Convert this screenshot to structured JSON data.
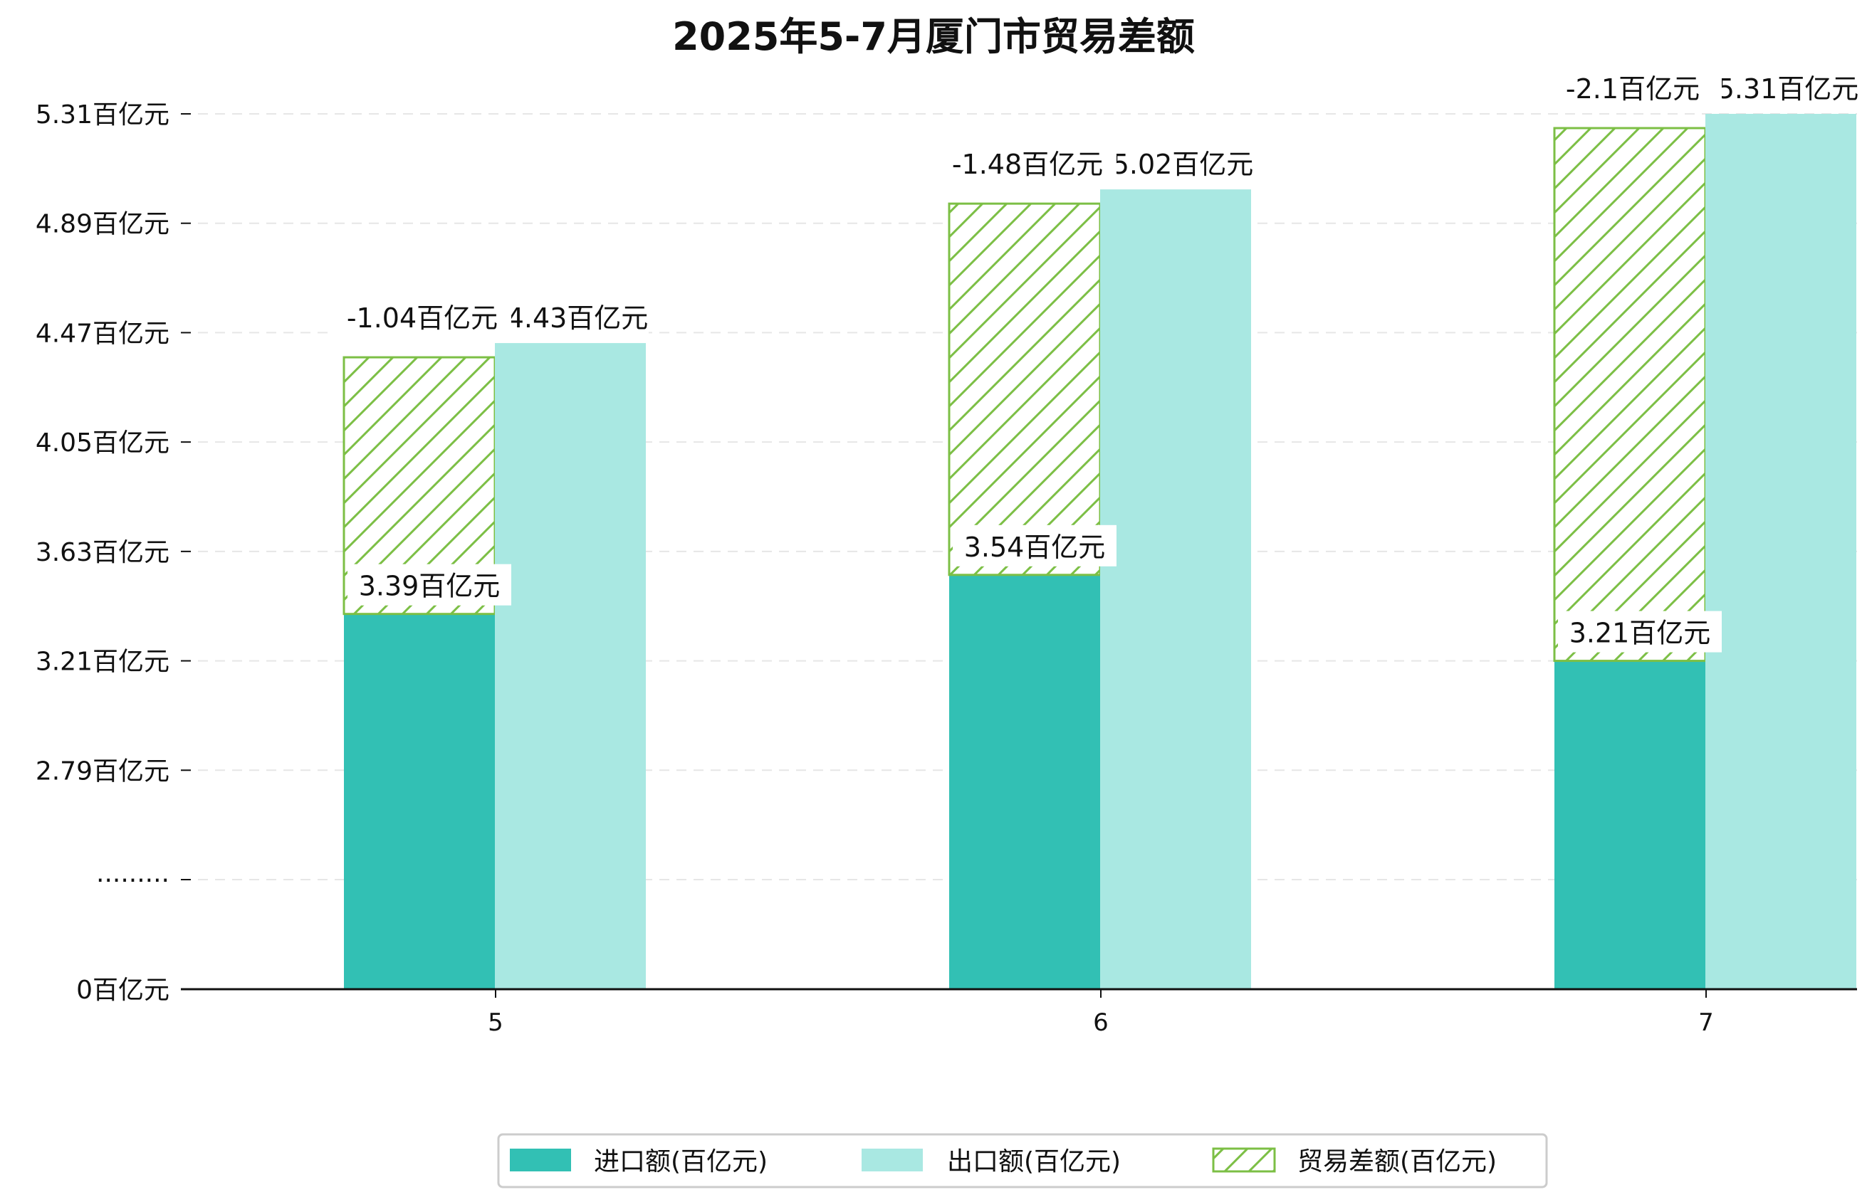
{
  "chart_data": {
    "type": "bar",
    "title": "2025年5-7月厦门市贸易差额",
    "categories": [
      "5",
      "6",
      "7"
    ],
    "series": [
      {
        "name": "进口额(百亿元)",
        "values": [
          3.39,
          3.54,
          3.21
        ],
        "labels": [
          "3.39百亿元",
          "3.54百亿元",
          "3.21百亿元"
        ],
        "color": "#32c0b4"
      },
      {
        "name": "出口额(百亿元)",
        "values": [
          4.43,
          5.02,
          5.31
        ],
        "labels": [
          "4.43百亿元",
          "5.02百亿元",
          "5.31百亿元"
        ],
        "color": "#a9e8e2"
      },
      {
        "name": "贸易差额(百亿元)",
        "values": [
          -1.04,
          -1.48,
          -2.1
        ],
        "labels": [
          "-1.04百亿元",
          "-1.48百亿元",
          "-2.1百亿元"
        ],
        "color": "#7cbf45",
        "style": "hatched"
      }
    ],
    "yticks": [
      {
        "value": 0,
        "label": "0百亿元"
      },
      {
        "value": 2.37,
        "label": "·········"
      },
      {
        "value": 2.79,
        "label": "2.79百亿元"
      },
      {
        "value": 3.21,
        "label": "3.21百亿元"
      },
      {
        "value": 3.63,
        "label": "3.63百亿元"
      },
      {
        "value": 4.05,
        "label": "4.05百亿元"
      },
      {
        "value": 4.47,
        "label": "4.47百亿元"
      },
      {
        "value": 4.89,
        "label": "4.89百亿元"
      },
      {
        "value": 5.31,
        "label": "5.31百亿元"
      }
    ],
    "axis_break": {
      "from": 0,
      "to": 2.37
    },
    "ylim": [
      0,
      5.31
    ],
    "grid": true,
    "legend_position": "bottom"
  }
}
